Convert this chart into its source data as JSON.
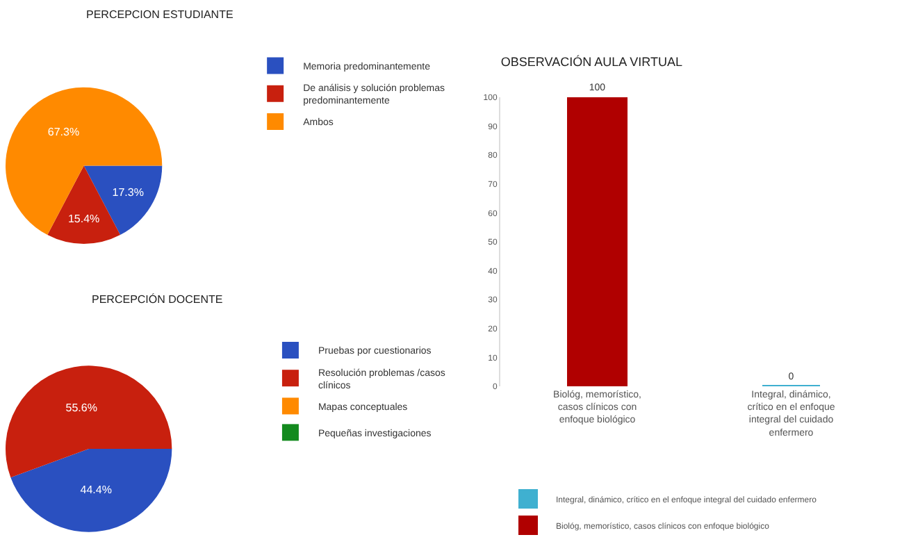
{
  "chart_data": [
    {
      "type": "pie",
      "title": "PERCEPCION ESTUDIANTE",
      "categories": [
        "Memoria predominantemente",
        "De análisis y solución problemas predominantemente",
        "Ambos"
      ],
      "values": [
        17.3,
        15.4,
        67.3
      ],
      "colors": [
        "#2a50c0",
        "#c8200e",
        "#ff8a00"
      ],
      "value_labels": [
        "17.3%",
        "15.4%",
        "67.3%"
      ],
      "legend": "right"
    },
    {
      "type": "pie",
      "title": "PERCEPCIÓN DOCENTE",
      "categories": [
        "Pruebas por cuestionarios",
        "Resolución problemas /casos clínicos",
        "Mapas conceptuales",
        "Pequeñas investigaciones"
      ],
      "values": [
        44.4,
        55.6,
        0,
        0
      ],
      "colors": [
        "#2a50c0",
        "#c8200e",
        "#ff8a00",
        "#138a1e"
      ],
      "value_labels": [
        "44.4%",
        "55.6%",
        null,
        null
      ],
      "legend": "right"
    },
    {
      "type": "bar",
      "title": "OBSERVACIÓN AULA VIRTUAL",
      "categories": [
        "Biológ, memorístico, casos clínicos con enfoque biológico",
        "Integral, dinámico, crítico en el enfoque integral del cuidado enfermero"
      ],
      "stacked": true,
      "series": [
        {
          "name": "Biológ, memorístico, casos clínicos con enfoque biológico",
          "color": "#b00000",
          "values": [
            100,
            null
          ]
        },
        {
          "name": "Integral, dinámico, crítico en el enfoque integral del cuidado enfermero",
          "color": "#3fb0d0",
          "values": [
            null,
            0
          ]
        }
      ],
      "ylim": [
        0,
        100
      ],
      "yticks": [
        0,
        10,
        20,
        30,
        40,
        50,
        60,
        70,
        80,
        90,
        100
      ],
      "data_labels": true,
      "legend": "bottom"
    }
  ]
}
